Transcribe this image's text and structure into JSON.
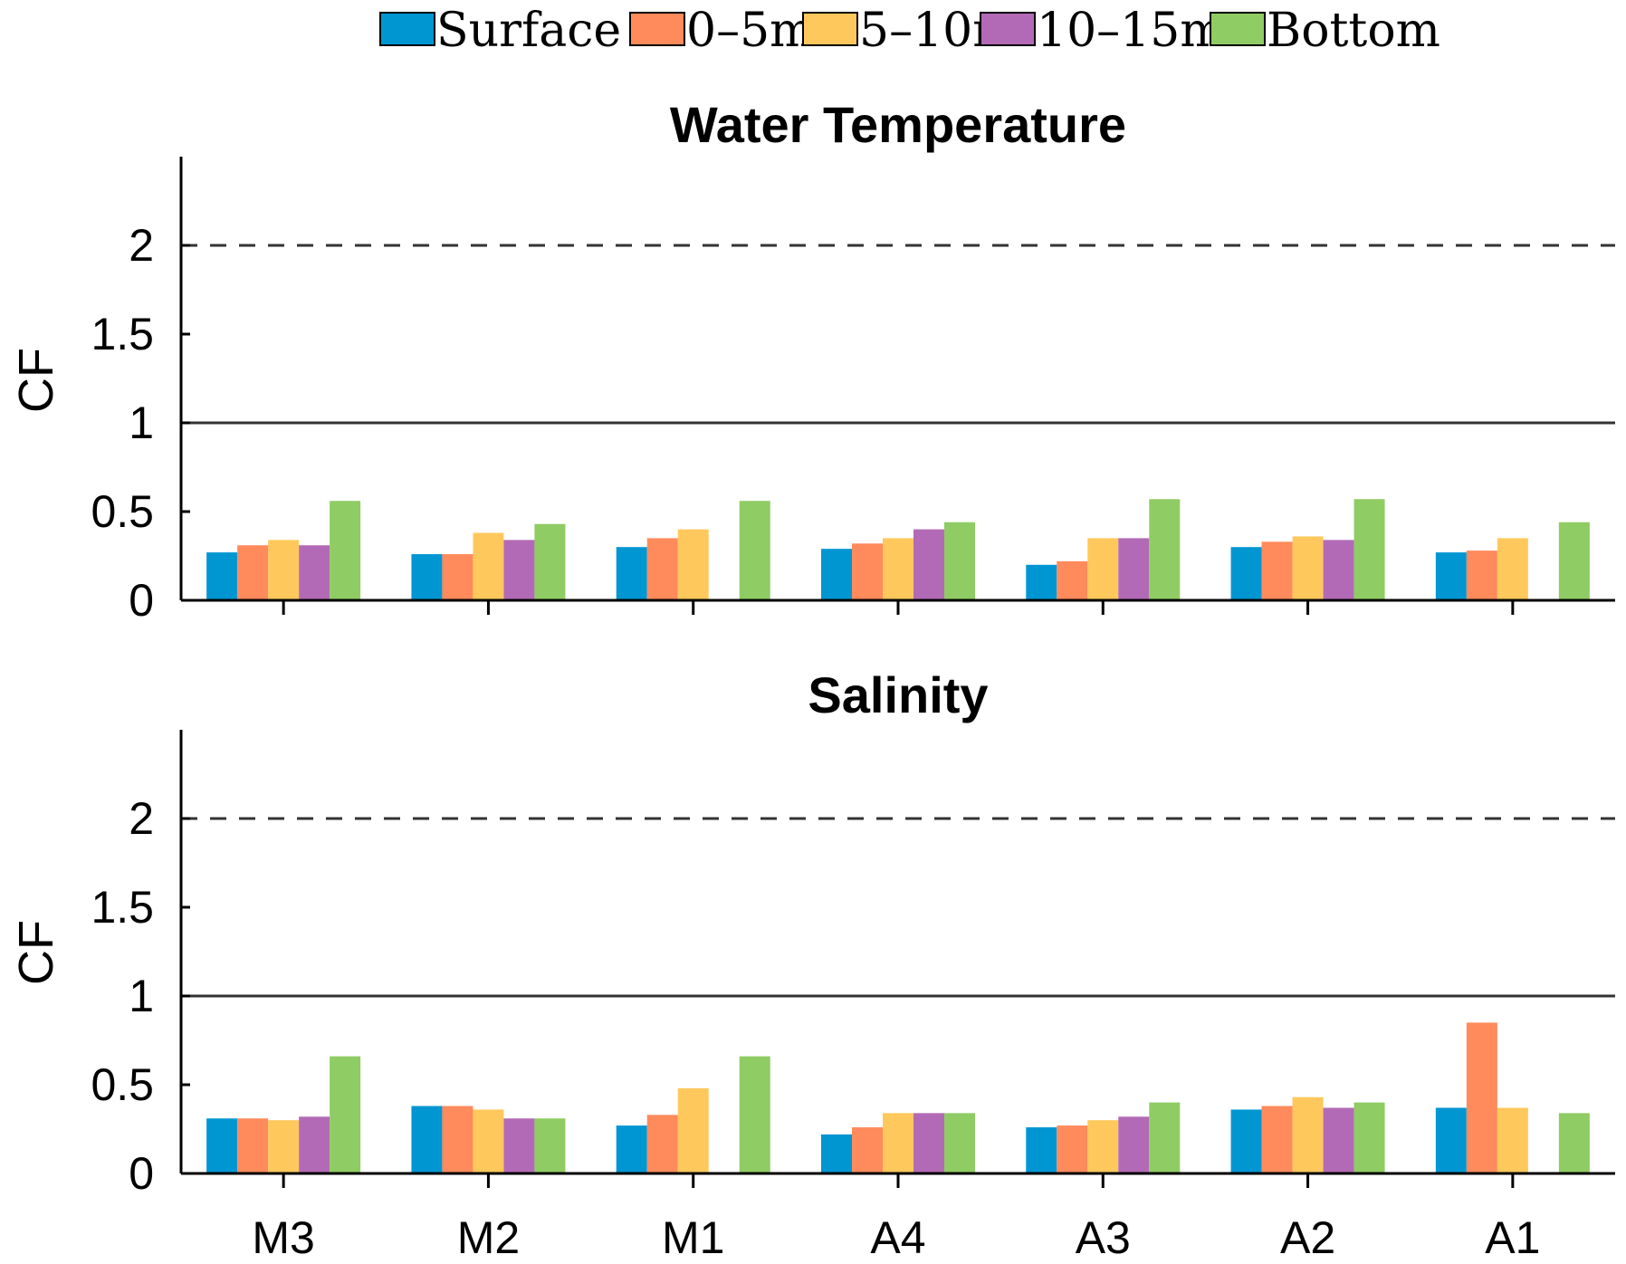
{
  "chart_data": [
    {
      "type": "bar",
      "title": "Water Temperature",
      "ylabel": "CF",
      "xlabel": "",
      "ylim": [
        0,
        2.5
      ],
      "yticks": [
        0,
        0.5,
        1,
        1.5,
        2
      ],
      "ytick_labels": [
        "0",
        "0.5",
        "1",
        "1.5",
        "2"
      ],
      "reference_lines": [
        {
          "y": 1,
          "style": "solid"
        },
        {
          "y": 2,
          "style": "dashed"
        }
      ],
      "categories": [
        "M3",
        "M2",
        "M1",
        "A4",
        "A3",
        "A2",
        "A1"
      ],
      "show_category_labels": false,
      "series": [
        {
          "name": "Surface",
          "values": [
            0.27,
            0.26,
            0.3,
            0.29,
            0.2,
            0.3,
            0.27
          ]
        },
        {
          "name": "0–5m",
          "values": [
            0.31,
            0.26,
            0.35,
            0.32,
            0.22,
            0.33,
            0.28
          ]
        },
        {
          "name": "5–10m",
          "values": [
            0.34,
            0.38,
            0.4,
            0.35,
            0.35,
            0.36,
            0.35
          ]
        },
        {
          "name": "10–15m",
          "values": [
            0.31,
            0.34,
            null,
            0.4,
            0.35,
            0.34,
            null
          ]
        },
        {
          "name": "Bottom",
          "values": [
            0.56,
            0.43,
            0.56,
            0.44,
            0.57,
            0.57,
            0.44
          ]
        }
      ]
    },
    {
      "type": "bar",
      "title": "Salinity",
      "ylabel": "CF",
      "xlabel": "",
      "ylim": [
        0,
        2.5
      ],
      "yticks": [
        0,
        0.5,
        1,
        1.5,
        2
      ],
      "ytick_labels": [
        "0",
        "0.5",
        "1",
        "1.5",
        "2"
      ],
      "reference_lines": [
        {
          "y": 1,
          "style": "solid"
        },
        {
          "y": 2,
          "style": "dashed"
        }
      ],
      "categories": [
        "M3",
        "M2",
        "M1",
        "A4",
        "A3",
        "A2",
        "A1"
      ],
      "show_category_labels": true,
      "series": [
        {
          "name": "Surface",
          "values": [
            0.31,
            0.38,
            0.27,
            0.22,
            0.26,
            0.36,
            0.37
          ]
        },
        {
          "name": "0–5m",
          "values": [
            0.31,
            0.38,
            0.33,
            0.26,
            0.27,
            0.38,
            0.85
          ]
        },
        {
          "name": "5–10m",
          "values": [
            0.3,
            0.36,
            0.48,
            0.34,
            0.3,
            0.43,
            0.37
          ]
        },
        {
          "name": "10–15m",
          "values": [
            0.32,
            0.31,
            null,
            0.34,
            0.32,
            0.37,
            null
          ]
        },
        {
          "name": "Bottom",
          "values": [
            0.66,
            0.31,
            0.66,
            0.34,
            0.4,
            0.4,
            0.34
          ]
        }
      ]
    }
  ],
  "legend": {
    "placement": "top",
    "entries": [
      "Surface",
      "0–5m",
      "5–10m",
      "10–15m",
      "Bottom"
    ]
  },
  "series_colors": [
    "#0096d2",
    "#ff8a5c",
    "#ffc85c",
    "#b36ab6",
    "#8fcc63"
  ],
  "reference_line_color": "#333333"
}
